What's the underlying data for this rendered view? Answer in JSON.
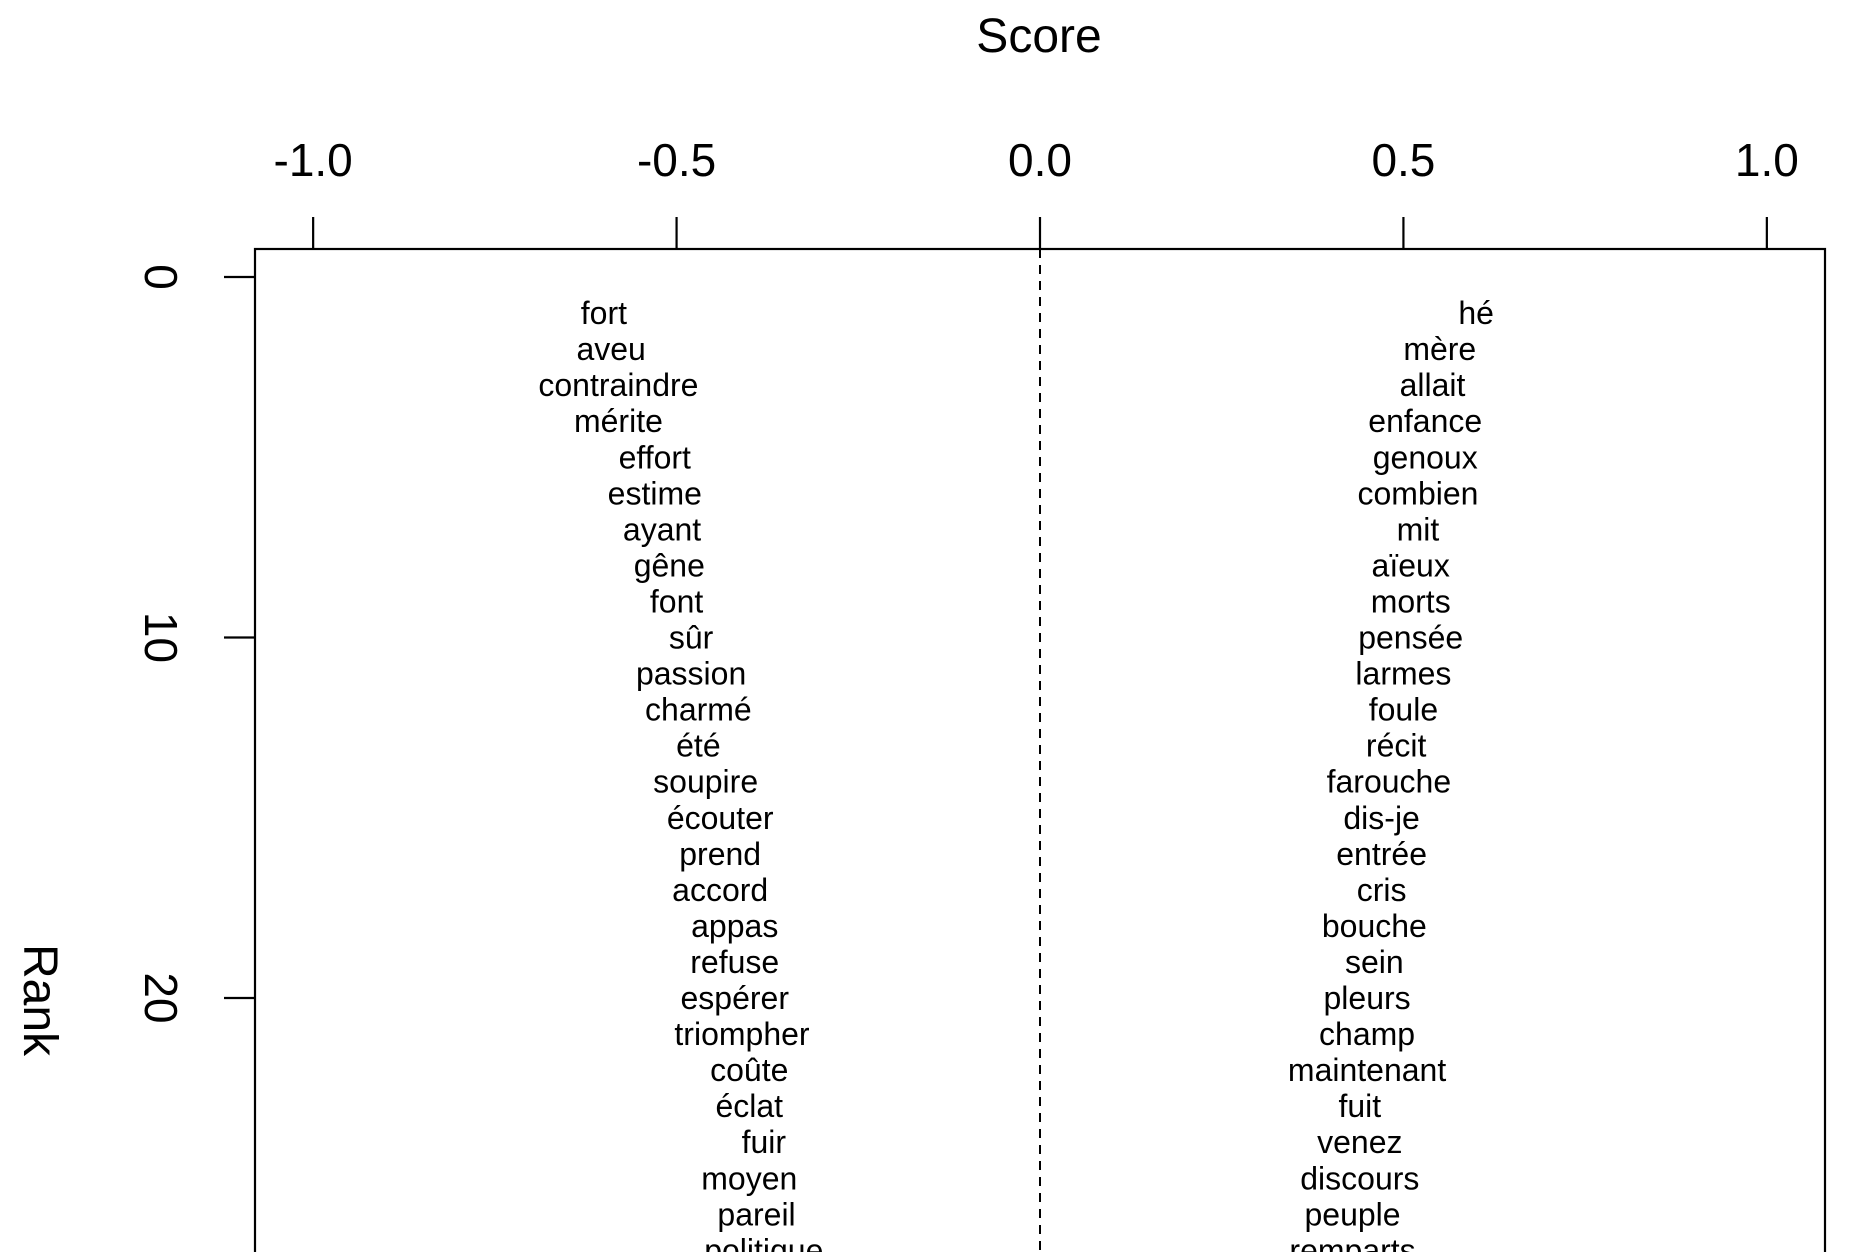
{
  "chart_data": {
    "type": "scatter",
    "xlabel": "Score",
    "ylabel": "Rank",
    "xlim": [
      -1.08,
      1.08
    ],
    "ylim": [
      0,
      27.4
    ],
    "x_axis_position": "top",
    "y_reversed": true,
    "grid": false,
    "legend": "none",
    "x_ticks": [
      {
        "value": -1.0,
        "label": "-1.0"
      },
      {
        "value": -0.5,
        "label": "-0.5"
      },
      {
        "value": 0.0,
        "label": "0.0"
      },
      {
        "value": 0.5,
        "label": "0.5"
      },
      {
        "value": 1.0,
        "label": "1.0"
      }
    ],
    "y_ticks": [
      {
        "value": 0,
        "label": "0"
      },
      {
        "value": 10,
        "label": "10"
      },
      {
        "value": 20,
        "label": "20"
      }
    ],
    "reference_line": {
      "x": 0,
      "style": "dashed"
    },
    "series": [
      {
        "side": "negative",
        "points": [
          {
            "rank": 1,
            "word": "fort",
            "score": -0.6
          },
          {
            "rank": 2,
            "word": "aveu",
            "score": -0.59
          },
          {
            "rank": 3,
            "word": "contraindre",
            "score": -0.58
          },
          {
            "rank": 4,
            "word": "mérite",
            "score": -0.58
          },
          {
            "rank": 5,
            "word": "effort",
            "score": -0.53
          },
          {
            "rank": 6,
            "word": "estime",
            "score": -0.53
          },
          {
            "rank": 7,
            "word": "ayant",
            "score": -0.52
          },
          {
            "rank": 8,
            "word": "gêne",
            "score": -0.51
          },
          {
            "rank": 9,
            "word": "font",
            "score": -0.5
          },
          {
            "rank": 10,
            "word": "sûr",
            "score": -0.48
          },
          {
            "rank": 11,
            "word": "passion",
            "score": -0.48
          },
          {
            "rank": 12,
            "word": "charmé",
            "score": -0.47
          },
          {
            "rank": 13,
            "word": "été",
            "score": -0.47
          },
          {
            "rank": 14,
            "word": "soupire",
            "score": -0.46
          },
          {
            "rank": 15,
            "word": "écouter",
            "score": -0.44
          },
          {
            "rank": 16,
            "word": "prend",
            "score": -0.44
          },
          {
            "rank": 17,
            "word": "accord",
            "score": -0.44
          },
          {
            "rank": 18,
            "word": "appas",
            "score": -0.42
          },
          {
            "rank": 19,
            "word": "refuse",
            "score": -0.42
          },
          {
            "rank": 20,
            "word": "espérer",
            "score": -0.42
          },
          {
            "rank": 21,
            "word": "triompher",
            "score": -0.41
          },
          {
            "rank": 22,
            "word": "coûte",
            "score": -0.4
          },
          {
            "rank": 23,
            "word": "éclat",
            "score": -0.4
          },
          {
            "rank": 24,
            "word": "fuir",
            "score": -0.38
          },
          {
            "rank": 25,
            "word": "moyen",
            "score": -0.4
          },
          {
            "rank": 26,
            "word": "pareil",
            "score": -0.39
          },
          {
            "rank": 27,
            "word": "politique",
            "score": -0.38
          }
        ]
      },
      {
        "side": "positive",
        "points": [
          {
            "rank": 1,
            "word": "hé",
            "score": 0.6
          },
          {
            "rank": 2,
            "word": "mère",
            "score": 0.55
          },
          {
            "rank": 3,
            "word": "allait",
            "score": 0.54
          },
          {
            "rank": 4,
            "word": "enfance",
            "score": 0.53
          },
          {
            "rank": 5,
            "word": "genoux",
            "score": 0.53
          },
          {
            "rank": 6,
            "word": "combien",
            "score": 0.52
          },
          {
            "rank": 7,
            "word": "mit",
            "score": 0.52
          },
          {
            "rank": 8,
            "word": "aïeux",
            "score": 0.51
          },
          {
            "rank": 9,
            "word": "morts",
            "score": 0.51
          },
          {
            "rank": 10,
            "word": "pensée",
            "score": 0.51
          },
          {
            "rank": 11,
            "word": "larmes",
            "score": 0.5
          },
          {
            "rank": 12,
            "word": "foule",
            "score": 0.5
          },
          {
            "rank": 13,
            "word": "récit",
            "score": 0.49
          },
          {
            "rank": 14,
            "word": "farouche",
            "score": 0.48
          },
          {
            "rank": 15,
            "word": "dis-je",
            "score": 0.47
          },
          {
            "rank": 16,
            "word": "entrée",
            "score": 0.47
          },
          {
            "rank": 17,
            "word": "cris",
            "score": 0.47
          },
          {
            "rank": 18,
            "word": "bouche",
            "score": 0.46
          },
          {
            "rank": 19,
            "word": "sein",
            "score": 0.46
          },
          {
            "rank": 20,
            "word": "pleurs",
            "score": 0.45
          },
          {
            "rank": 21,
            "word": "champ",
            "score": 0.45
          },
          {
            "rank": 22,
            "word": "maintenant",
            "score": 0.45
          },
          {
            "rank": 23,
            "word": "fuit",
            "score": 0.44
          },
          {
            "rank": 24,
            "word": "venez",
            "score": 0.44
          },
          {
            "rank": 25,
            "word": "discours",
            "score": 0.44
          },
          {
            "rank": 26,
            "word": "peuple",
            "score": 0.43
          },
          {
            "rank": 27,
            "word": "remparts",
            "score": 0.43
          }
        ]
      }
    ]
  }
}
